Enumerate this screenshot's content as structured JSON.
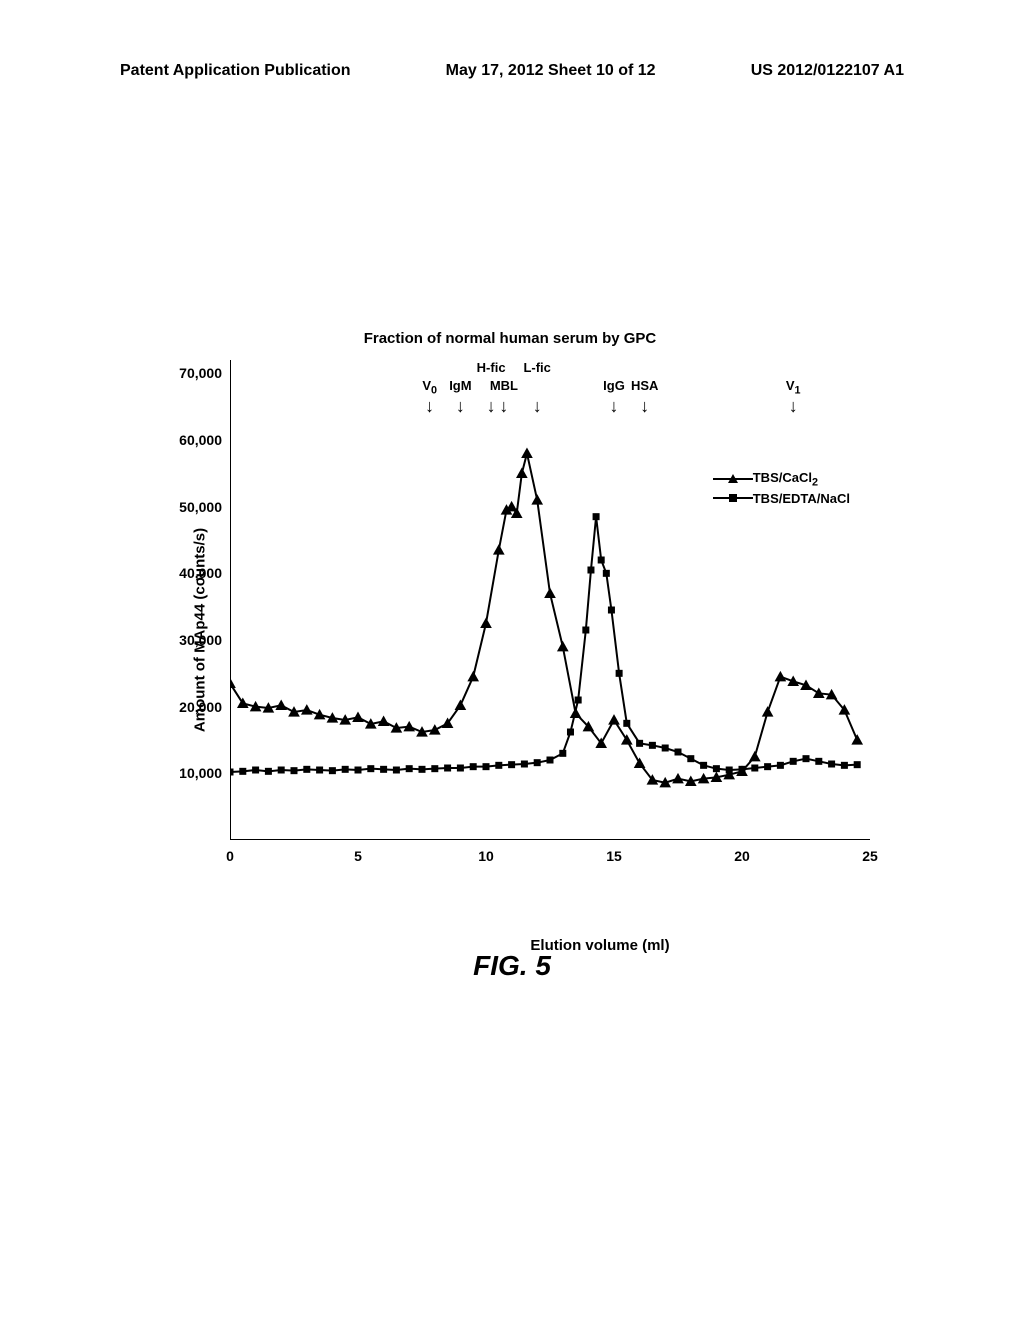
{
  "header": {
    "left": "Patent Application Publication",
    "center": "May 17, 2012  Sheet 10 of 12",
    "right": "US 2012/0122107 A1"
  },
  "figure_label": "FIG. 5",
  "chart": {
    "type": "line-scatter",
    "title": "Fraction of normal human serum by GPC",
    "xlabel": "Elution volume (ml)",
    "ylabel": "Amount of MAp44 (counts/s)",
    "xlim": [
      0,
      25
    ],
    "ylim": [
      0,
      72000
    ],
    "xticks": [
      0,
      5,
      10,
      15,
      20,
      25
    ],
    "yticks": [
      10000,
      20000,
      30000,
      40000,
      50000,
      60000,
      70000
    ],
    "ytick_labels": [
      "10,000",
      "20,000",
      "30,000",
      "40,000",
      "50,000",
      "60,000",
      "70,000"
    ],
    "background_color": "#ffffff",
    "axis_color": "#000000",
    "line_width": 2.0,
    "marker_size": 7,
    "legend": {
      "position": "upper-right",
      "entries": [
        {
          "label_prefix": "TBS/CaCl",
          "label_sub": "2",
          "marker": "triangle",
          "color": "#000000"
        },
        {
          "label": "TBS/EDTA/NaCl",
          "marker": "square",
          "color": "#000000"
        }
      ]
    },
    "annotations": [
      {
        "x": 7.8,
        "label": "V",
        "sub": "0"
      },
      {
        "x": 9.0,
        "label": "IgM"
      },
      {
        "x": 10.2,
        "label": "H-fic"
      },
      {
        "x": 10.7,
        "label": "MBL"
      },
      {
        "x": 12.0,
        "label": "L-fic"
      },
      {
        "x": 15.0,
        "label": "IgG"
      },
      {
        "x": 16.2,
        "label": "HSA"
      },
      {
        "x": 22.0,
        "label": "V",
        "sub": "1"
      }
    ],
    "series": [
      {
        "name": "TBS/CaCl2",
        "marker": "triangle",
        "color": "#000000",
        "points": [
          [
            0,
            23500
          ],
          [
            0.5,
            20500
          ],
          [
            1,
            20000
          ],
          [
            1.5,
            19800
          ],
          [
            2,
            20200
          ],
          [
            2.5,
            19200
          ],
          [
            3,
            19500
          ],
          [
            3.5,
            18800
          ],
          [
            4,
            18300
          ],
          [
            4.5,
            18000
          ],
          [
            5,
            18400
          ],
          [
            5.5,
            17400
          ],
          [
            6,
            17800
          ],
          [
            6.5,
            16800
          ],
          [
            7,
            17000
          ],
          [
            7.5,
            16200
          ],
          [
            8,
            16500
          ],
          [
            8.5,
            17500
          ],
          [
            9,
            20200
          ],
          [
            9.5,
            24500
          ],
          [
            10,
            32500
          ],
          [
            10.5,
            43500
          ],
          [
            10.8,
            49500
          ],
          [
            11,
            50000
          ],
          [
            11.2,
            49000
          ],
          [
            11.4,
            55000
          ],
          [
            11.6,
            58000
          ],
          [
            12,
            51000
          ],
          [
            12.5,
            37000
          ],
          [
            13,
            29000
          ],
          [
            13.5,
            19000
          ],
          [
            14,
            17000
          ],
          [
            14.5,
            14500
          ],
          [
            15,
            18000
          ],
          [
            15.5,
            15000
          ],
          [
            16,
            11500
          ],
          [
            16.5,
            9000
          ],
          [
            17,
            8600
          ],
          [
            17.5,
            9200
          ],
          [
            18,
            8800
          ],
          [
            18.5,
            9200
          ],
          [
            19,
            9400
          ],
          [
            19.5,
            9800
          ],
          [
            20,
            10300
          ],
          [
            20.5,
            12500
          ],
          [
            21,
            19200
          ],
          [
            21.5,
            24500
          ],
          [
            22,
            23800
          ],
          [
            22.5,
            23200
          ],
          [
            23,
            22000
          ],
          [
            23.5,
            21800
          ],
          [
            24,
            19500
          ],
          [
            24.5,
            15000
          ]
        ]
      },
      {
        "name": "TBS/EDTA/NaCl",
        "marker": "square",
        "color": "#000000",
        "points": [
          [
            0,
            10200
          ],
          [
            0.5,
            10300
          ],
          [
            1,
            10500
          ],
          [
            1.5,
            10300
          ],
          [
            2,
            10500
          ],
          [
            2.5,
            10400
          ],
          [
            3,
            10600
          ],
          [
            3.5,
            10500
          ],
          [
            4,
            10400
          ],
          [
            4.5,
            10600
          ],
          [
            5,
            10500
          ],
          [
            5.5,
            10700
          ],
          [
            6,
            10600
          ],
          [
            6.5,
            10500
          ],
          [
            7,
            10700
          ],
          [
            7.5,
            10600
          ],
          [
            8,
            10700
          ],
          [
            8.5,
            10800
          ],
          [
            9,
            10800
          ],
          [
            9.5,
            11000
          ],
          [
            10,
            11000
          ],
          [
            10.5,
            11200
          ],
          [
            11,
            11300
          ],
          [
            11.5,
            11400
          ],
          [
            12,
            11600
          ],
          [
            12.5,
            12000
          ],
          [
            13,
            13000
          ],
          [
            13.3,
            16200
          ],
          [
            13.6,
            21000
          ],
          [
            13.9,
            31500
          ],
          [
            14.1,
            40500
          ],
          [
            14.3,
            48500
          ],
          [
            14.5,
            42000
          ],
          [
            14.7,
            40000
          ],
          [
            14.9,
            34500
          ],
          [
            15.2,
            25000
          ],
          [
            15.5,
            17500
          ],
          [
            16,
            14500
          ],
          [
            16.5,
            14200
          ],
          [
            17,
            13800
          ],
          [
            17.5,
            13200
          ],
          [
            18,
            12200
          ],
          [
            18.5,
            11200
          ],
          [
            19,
            10700
          ],
          [
            19.5,
            10500
          ],
          [
            20,
            10600
          ],
          [
            20.5,
            10800
          ],
          [
            21,
            11000
          ],
          [
            21.5,
            11200
          ],
          [
            22,
            11800
          ],
          [
            22.5,
            12200
          ],
          [
            23,
            11800
          ],
          [
            23.5,
            11400
          ],
          [
            24,
            11200
          ],
          [
            24.5,
            11300
          ]
        ]
      }
    ]
  }
}
